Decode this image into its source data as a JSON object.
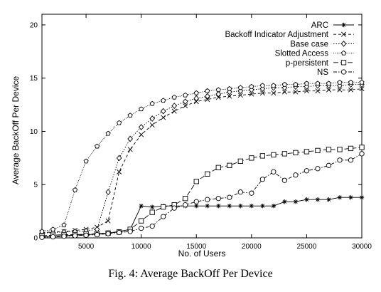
{
  "caption": "Fig. 4: Average BackOff Per Device",
  "chart_data": {
    "type": "line",
    "title": "",
    "xlabel": "No. of Users",
    "ylabel": "Average BackOff Per Device",
    "xlim": [
      1000,
      30000
    ],
    "ylim": [
      0,
      21
    ],
    "xticks": [
      5000,
      10000,
      15000,
      20000,
      25000,
      30000
    ],
    "yticks": [
      0,
      5,
      10,
      15,
      20
    ],
    "grid": false,
    "legend_position": "top-right",
    "x": [
      1000,
      2000,
      3000,
      4000,
      5000,
      6000,
      7000,
      8000,
      9000,
      10000,
      11000,
      12000,
      13000,
      14000,
      15000,
      16000,
      17000,
      18000,
      19000,
      20000,
      21000,
      22000,
      23000,
      24000,
      25000,
      26000,
      27000,
      28000,
      29000,
      30000
    ],
    "series": [
      {
        "name": "ARC",
        "marker": "star",
        "dash": "solid",
        "values": [
          0.1,
          0.15,
          0.2,
          0.25,
          0.3,
          0.35,
          0.45,
          0.6,
          0.8,
          3.0,
          2.9,
          3.0,
          3.0,
          3.0,
          3.0,
          3.0,
          3.0,
          3.0,
          3.0,
          3.0,
          3.0,
          3.0,
          3.4,
          3.4,
          3.6,
          3.6,
          3.6,
          3.8,
          3.8,
          3.8
        ]
      },
      {
        "name": "Backoff Indicator Adjustment",
        "marker": "x",
        "dash": "dashed",
        "values": [
          0.5,
          0.55,
          0.6,
          0.7,
          0.8,
          1.0,
          1.6,
          6.2,
          8.3,
          9.7,
          10.6,
          11.3,
          11.9,
          12.4,
          12.8,
          13.0,
          13.2,
          13.3,
          13.4,
          13.5,
          13.6,
          13.6,
          13.7,
          13.7,
          13.8,
          13.8,
          13.9,
          13.9,
          13.9,
          14.0
        ]
      },
      {
        "name": "Base case",
        "marker": "diamond",
        "dash": "dotted",
        "values": [
          0.45,
          0.5,
          0.55,
          0.6,
          0.65,
          0.8,
          4.3,
          7.5,
          9.3,
          10.4,
          11.2,
          11.9,
          12.4,
          12.8,
          13.1,
          13.3,
          13.5,
          13.7,
          13.8,
          13.9,
          14.0,
          14.1,
          14.1,
          14.2,
          14.2,
          14.3,
          14.3,
          14.3,
          14.4,
          14.4
        ]
      },
      {
        "name": "Slotted Access",
        "marker": "pentagon",
        "dash": "finedot",
        "values": [
          0.6,
          0.8,
          1.2,
          4.5,
          7.2,
          8.6,
          9.8,
          10.8,
          11.5,
          12.1,
          12.6,
          12.9,
          13.2,
          13.4,
          13.6,
          13.8,
          13.9,
          14.0,
          14.1,
          14.2,
          14.3,
          14.3,
          14.4,
          14.4,
          14.5,
          14.5,
          14.5,
          14.6,
          14.6,
          14.6
        ]
      },
      {
        "name": "p-persistent",
        "marker": "square",
        "dash": "longdash",
        "values": [
          0.2,
          0.25,
          0.3,
          0.3,
          0.35,
          0.4,
          0.45,
          0.55,
          0.8,
          1.6,
          2.4,
          2.9,
          3.1,
          3.7,
          5.3,
          6.0,
          6.6,
          6.8,
          7.2,
          7.5,
          7.7,
          7.8,
          7.9,
          8.0,
          8.1,
          8.2,
          8.3,
          8.3,
          8.4,
          8.5
        ]
      },
      {
        "name": "NS",
        "marker": "circle",
        "dash": "dashdot",
        "values": [
          0.05,
          0.1,
          0.15,
          0.2,
          0.25,
          0.3,
          0.4,
          0.5,
          0.6,
          0.9,
          1.1,
          2.0,
          2.8,
          3.1,
          3.4,
          3.6,
          3.7,
          3.8,
          4.3,
          4.2,
          5.5,
          6.2,
          5.4,
          5.9,
          6.3,
          6.5,
          6.8,
          7.3,
          7.3,
          7.9
        ]
      }
    ]
  }
}
